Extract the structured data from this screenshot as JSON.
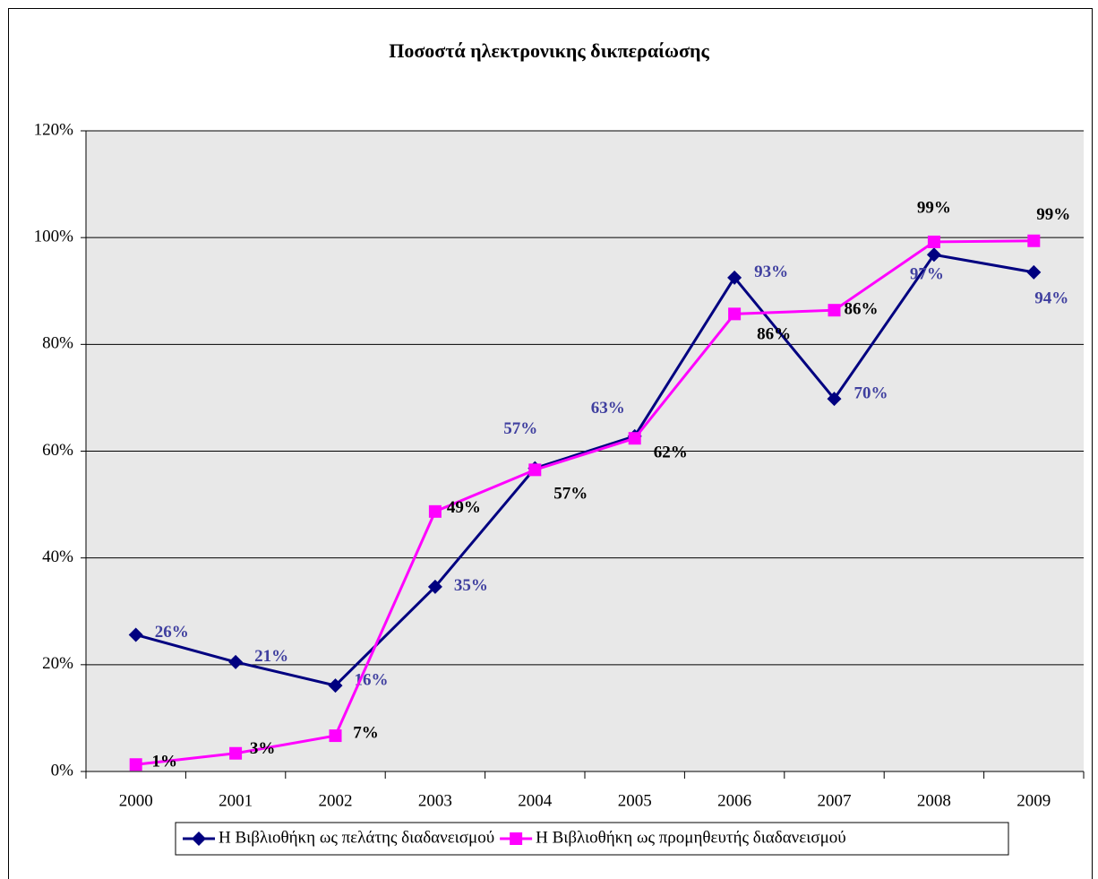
{
  "chart_data": {
    "type": "line",
    "title": "Ποσοστά ηλεκτρονικης δικπεραίωσης",
    "categories": [
      "2000",
      "2001",
      "2002",
      "2003",
      "2004",
      "2005",
      "2006",
      "2007",
      "2008",
      "2009"
    ],
    "series": [
      {
        "name": "Η Βιβλιοθήκη ως πελάτης διαδανεισμού",
        "color": "#000080",
        "marker": "diamond",
        "label_color": "#3f3f9f",
        "values": [
          25.6,
          20.5,
          16.1,
          34.6,
          56.8,
          62.8,
          92.5,
          69.8,
          96.8,
          93.5
        ],
        "value_labels": [
          "26%",
          "21%",
          "16%",
          "35%",
          "57%",
          "63%",
          "93%",
          "70%",
          "97%",
          "94%"
        ]
      },
      {
        "name": "Η Βιβλιοθήκη ως προμηθευτής διαδανεισμού",
        "color": "#ff00ff",
        "marker": "square",
        "label_color": "#000000",
        "values": [
          1.3,
          3.4,
          6.7,
          48.7,
          56.5,
          62.4,
          85.7,
          86.4,
          99.2,
          99.4
        ],
        "value_labels": [
          "1%",
          "3%",
          "7%",
          "49%",
          "57%",
          "62%",
          "86%",
          "86%",
          "99%",
          "99%"
        ]
      }
    ],
    "ylim": [
      0,
      120
    ],
    "yticks": [
      {
        "value": 0,
        "label": "0%"
      },
      {
        "value": 20,
        "label": "20%"
      },
      {
        "value": 40,
        "label": "40%"
      },
      {
        "value": 60,
        "label": "60%"
      },
      {
        "value": 80,
        "label": "80%"
      },
      {
        "value": 100,
        "label": "100%"
      },
      {
        "value": 120,
        "label": "120%"
      }
    ],
    "grid": true,
    "legend": "bottom"
  }
}
